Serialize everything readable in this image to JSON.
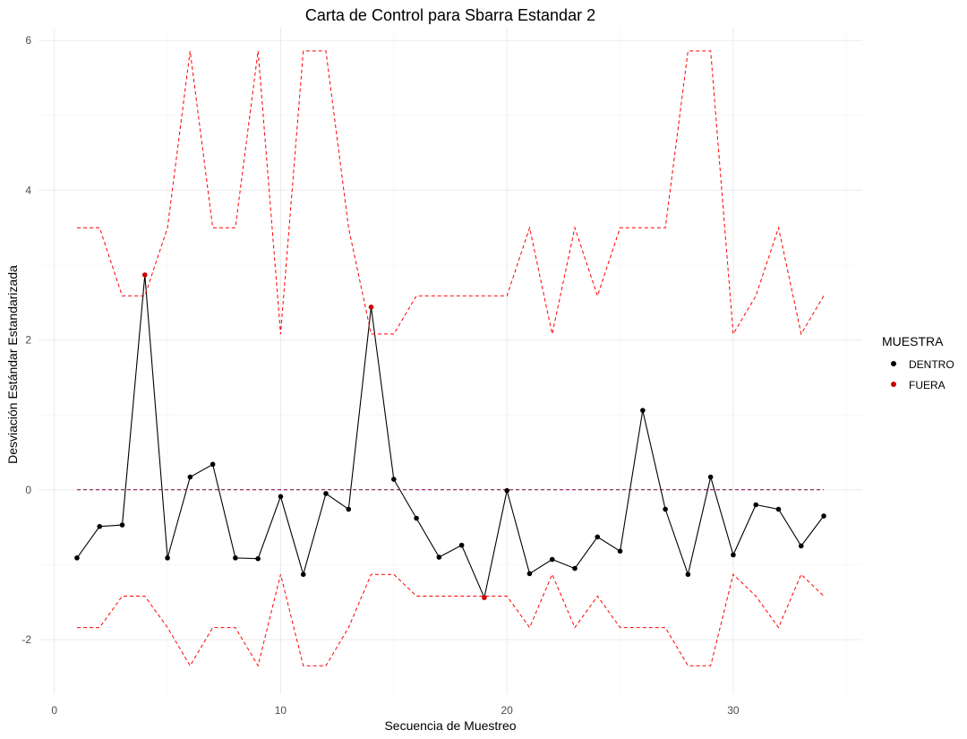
{
  "chart_data": {
    "type": "line",
    "title": "Carta de Control para Sbarra Estandar 2",
    "xlabel": "Secuencia de Muestreo",
    "ylabel": "Desviación Estándar Estandarizada",
    "xlim": [
      -0.7,
      35.7
    ],
    "ylim": [
      -2.73,
      6.17
    ],
    "x_ticks": [
      0,
      10,
      20,
      30
    ],
    "y_ticks": [
      -2,
      0,
      2,
      4,
      6
    ],
    "grid": true,
    "legend": {
      "title": "MUESTRA",
      "placement": "right",
      "entries": [
        {
          "label": "DENTRO",
          "color": "#000000"
        },
        {
          "label": "FUERA",
          "color": "#cc0000"
        }
      ]
    },
    "x": [
      1,
      2,
      3,
      4,
      5,
      6,
      7,
      8,
      9,
      10,
      11,
      12,
      13,
      14,
      15,
      16,
      17,
      18,
      19,
      20,
      21,
      22,
      23,
      24,
      25,
      26,
      27,
      28,
      29,
      30,
      31,
      32,
      33,
      34
    ],
    "series": [
      {
        "role": "observed",
        "line_color": "#000000",
        "values": [
          -0.91,
          -0.49,
          -0.47,
          2.87,
          -0.91,
          0.17,
          0.34,
          -0.91,
          -0.92,
          -0.09,
          -1.13,
          -0.05,
          -0.26,
          2.44,
          0.14,
          -0.38,
          -0.9,
          -0.74,
          -1.44,
          -0.01,
          -1.12,
          -0.93,
          -1.05,
          -0.63,
          -0.82,
          1.06,
          -0.26,
          -1.13,
          0.17,
          -0.87,
          -0.2,
          -0.26,
          -0.75,
          -0.35
        ],
        "status": [
          "DENTRO",
          "DENTRO",
          "DENTRO",
          "FUERA",
          "DENTRO",
          "DENTRO",
          "DENTRO",
          "DENTRO",
          "DENTRO",
          "DENTRO",
          "DENTRO",
          "DENTRO",
          "DENTRO",
          "FUERA",
          "DENTRO",
          "DENTRO",
          "DENTRO",
          "DENTRO",
          "FUERA",
          "DENTRO",
          "DENTRO",
          "DENTRO",
          "DENTRO",
          "DENTRO",
          "DENTRO",
          "DENTRO",
          "DENTRO",
          "DENTRO",
          "DENTRO",
          "DENTRO",
          "DENTRO",
          "DENTRO",
          "DENTRO",
          "DENTRO"
        ]
      },
      {
        "role": "upper-limit",
        "line_color": "#ff0000",
        "dashed": true,
        "values": [
          3.5,
          3.5,
          2.59,
          2.59,
          3.5,
          5.86,
          3.5,
          3.5,
          5.86,
          2.08,
          5.86,
          5.86,
          3.5,
          2.08,
          2.08,
          2.59,
          2.59,
          2.59,
          2.59,
          2.59,
          3.5,
          2.08,
          3.5,
          2.59,
          3.5,
          3.5,
          3.5,
          5.86,
          5.86,
          2.08,
          2.59,
          3.5,
          2.08,
          2.59
        ]
      },
      {
        "role": "center-line",
        "line_color": "#800040",
        "dashed": true,
        "values": [
          0,
          0,
          0,
          0,
          0,
          0,
          0,
          0,
          0,
          0,
          0,
          0,
          0,
          0,
          0,
          0,
          0,
          0,
          0,
          0,
          0,
          0,
          0,
          0,
          0,
          0,
          0,
          0,
          0,
          0,
          0,
          0,
          0,
          0
        ]
      },
      {
        "role": "lower-limit",
        "line_color": "#ff0000",
        "dashed": true,
        "values": [
          -1.84,
          -1.84,
          -1.42,
          -1.42,
          -1.84,
          -2.35,
          -1.84,
          -1.84,
          -2.35,
          -1.13,
          -2.35,
          -2.35,
          -1.84,
          -1.13,
          -1.13,
          -1.42,
          -1.42,
          -1.42,
          -1.42,
          -1.42,
          -1.84,
          -1.13,
          -1.84,
          -1.42,
          -1.84,
          -1.84,
          -1.84,
          -2.35,
          -2.35,
          -1.13,
          -1.42,
          -1.84,
          -1.13,
          -1.42
        ]
      }
    ]
  }
}
